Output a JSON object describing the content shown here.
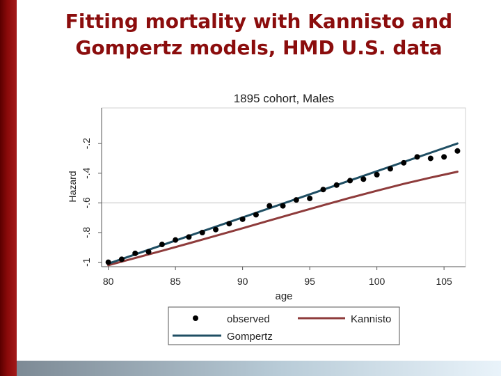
{
  "slide": {
    "title_line1": "Fitting mortality with Kannisto and",
    "title_line2": "Gompertz models, HMD U.S. data"
  },
  "colors": {
    "observed": "#000000",
    "kannisto": "#8e3b3b",
    "gompertz": "#1f4e63",
    "title": "#8b0d0d",
    "grid": "#cccccc"
  },
  "chart_data": {
    "type": "line",
    "title": "1895 cohort, Males",
    "xlabel": "age",
    "ylabel": "Hazard",
    "xlim": [
      79.5,
      106.6
    ],
    "ylim": [
      -1.03,
      0.04
    ],
    "xticks": [
      80,
      85,
      90,
      95,
      100,
      105
    ],
    "yticks": [
      -1,
      -0.8,
      -0.6,
      -0.4,
      -0.2
    ],
    "ytick_labels": [
      "-1",
      "-.8",
      "-.6",
      "-.4",
      "-.2"
    ],
    "grid_lines_y": [
      -0.6
    ],
    "series": [
      {
        "name": "observed",
        "kind": "scatter",
        "x": [
          80,
          81,
          82,
          83,
          84,
          85,
          86,
          87,
          88,
          89,
          90,
          91,
          92,
          93,
          94,
          95,
          96,
          97,
          98,
          99,
          100,
          101,
          102,
          103,
          104,
          105,
          106
        ],
        "y": [
          -1.0,
          -0.98,
          -0.94,
          -0.93,
          -0.88,
          -0.85,
          -0.83,
          -0.8,
          -0.78,
          -0.74,
          -0.71,
          -0.68,
          -0.62,
          -0.62,
          -0.58,
          -0.57,
          -0.51,
          -0.48,
          -0.45,
          -0.44,
          -0.41,
          -0.37,
          -0.33,
          -0.29,
          -0.3,
          -0.29,
          -0.25
        ]
      },
      {
        "name": "Kannisto",
        "kind": "line",
        "x": [
          80,
          82,
          84,
          86,
          88,
          90,
          92,
          94,
          96,
          98,
          100,
          102,
          104,
          106
        ],
        "y": [
          -1.02,
          -0.972,
          -0.923,
          -0.873,
          -0.822,
          -0.771,
          -0.719,
          -0.667,
          -0.616,
          -0.566,
          -0.518,
          -0.472,
          -0.43,
          -0.39
        ]
      },
      {
        "name": "Gompertz",
        "kind": "line",
        "x": [
          80,
          106
        ],
        "y": [
          -1.01,
          -0.2
        ]
      }
    ],
    "legend": {
      "position": "bottom",
      "entries": [
        "observed",
        "Kannisto",
        "Gompertz"
      ]
    }
  }
}
